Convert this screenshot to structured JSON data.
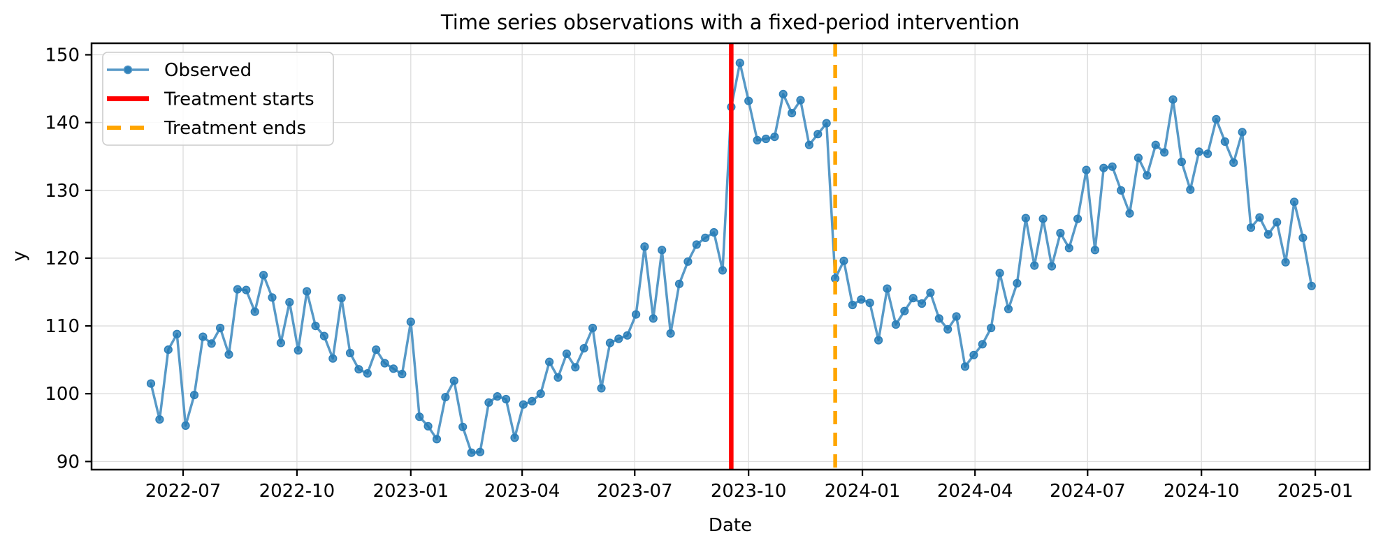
{
  "figure": {
    "title": "Time series observations with a fixed-period intervention",
    "xlabel": "Date",
    "ylabel": "y"
  },
  "legend": {
    "position": "upper left",
    "items": [
      {
        "label": "Observed",
        "style": "line-with-marker",
        "color": "#5799C7",
        "marker_color": "#2F81BA"
      },
      {
        "label": "Treatment starts",
        "style": "solid",
        "color": "#FF0000"
      },
      {
        "label": "Treatment ends",
        "style": "dashed",
        "color": "#FFA500"
      }
    ]
  },
  "events": [
    {
      "name": "treatment-starts",
      "date": "2023-09-17",
      "style": "solid",
      "color": "#FF0000",
      "line_width": 6.5
    },
    {
      "name": "treatment-ends",
      "date": "2023-12-10",
      "style": "dashed",
      "color": "#FFA500",
      "line_width": 5.5
    }
  ],
  "chart_data": {
    "type": "line",
    "title": "Time series observations with a fixed-period intervention",
    "xlabel": "Date",
    "ylabel": "y",
    "grid": true,
    "legend_position": "upper left",
    "xlim": [
      "2022-04-18",
      "2025-02-14"
    ],
    "ylim": [
      88.8,
      151.7
    ],
    "y_ticks": [
      90,
      100,
      110,
      120,
      130,
      140,
      150
    ],
    "x_ticks": [
      {
        "date": "2022-07-01",
        "label": "2022-07"
      },
      {
        "date": "2022-10-01",
        "label": "2022-10"
      },
      {
        "date": "2023-01-01",
        "label": "2023-01"
      },
      {
        "date": "2023-04-01",
        "label": "2023-04"
      },
      {
        "date": "2023-07-01",
        "label": "2023-07"
      },
      {
        "date": "2023-10-01",
        "label": "2023-10"
      },
      {
        "date": "2024-01-01",
        "label": "2024-01"
      },
      {
        "date": "2024-04-01",
        "label": "2024-04"
      },
      {
        "date": "2024-07-01",
        "label": "2024-07"
      },
      {
        "date": "2024-10-01",
        "label": "2024-10"
      },
      {
        "date": "2025-01-01",
        "label": "2025-01"
      }
    ],
    "series": [
      {
        "name": "Observed",
        "line_color": "#5799C7",
        "marker_color": "#2F81BA",
        "start_date": "2022-06-05",
        "freq_days": 7,
        "values": [
          101.5,
          96.2,
          106.5,
          108.8,
          95.3,
          99.8,
          108.4,
          107.4,
          109.7,
          105.8,
          115.4,
          115.3,
          112.1,
          117.5,
          114.2,
          107.5,
          113.5,
          106.4,
          115.1,
          110.0,
          108.5,
          105.2,
          114.1,
          106.0,
          103.6,
          103.0,
          106.5,
          104.5,
          103.7,
          102.9,
          110.6,
          96.6,
          95.2,
          93.3,
          99.5,
          101.9,
          95.1,
          91.3,
          91.4,
          98.7,
          99.6,
          99.2,
          93.5,
          98.4,
          98.9,
          100.0,
          104.7,
          102.4,
          105.9,
          103.9,
          106.7,
          109.7,
          100.8,
          107.5,
          108.1,
          108.6,
          111.7,
          121.7,
          111.1,
          121.2,
          108.9,
          116.2,
          119.5,
          122.0,
          123.0,
          123.8,
          118.2,
          142.3,
          148.8,
          143.2,
          137.4,
          137.6,
          137.9,
          144.2,
          141.4,
          143.3,
          136.7,
          138.3,
          139.9,
          117.0,
          119.6,
          113.1,
          113.9,
          113.4,
          107.9,
          115.5,
          110.2,
          112.2,
          114.1,
          113.3,
          114.9,
          111.1,
          109.5,
          111.4,
          104.0,
          105.7,
          107.3,
          109.7,
          117.8,
          112.5,
          116.3,
          125.9,
          118.9,
          125.8,
          118.8,
          123.7,
          121.5,
          125.8,
          133.0,
          121.2,
          133.3,
          133.5,
          130.0,
          126.6,
          134.8,
          132.2,
          136.7,
          135.6,
          143.4,
          134.2,
          130.1,
          135.7,
          135.4,
          140.5,
          137.2,
          134.1,
          138.6,
          124.5,
          126.0,
          123.5,
          125.3,
          119.4,
          128.3,
          123.0,
          115.9
        ]
      }
    ]
  }
}
